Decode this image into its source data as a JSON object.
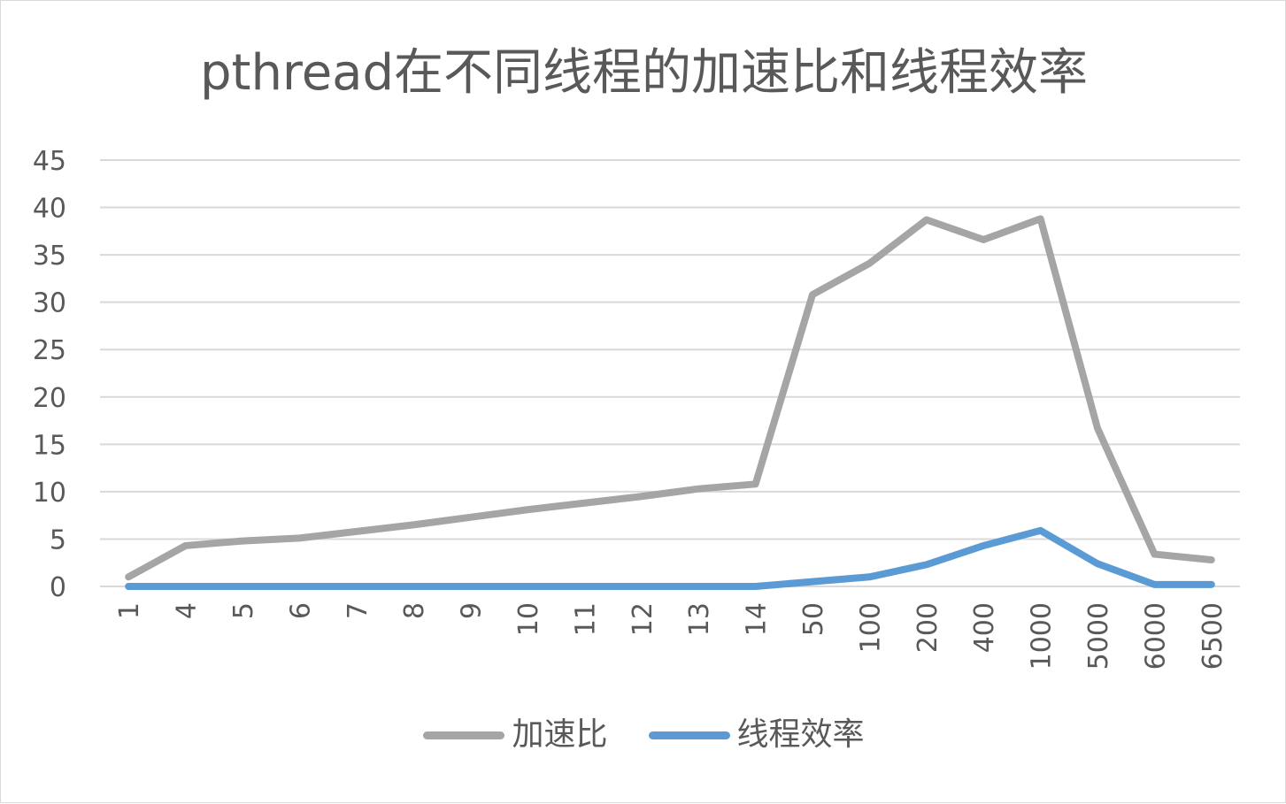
{
  "chart_data": {
    "type": "line",
    "title": "pthread在不同线程的加速比和线程效率",
    "categories": [
      "1",
      "4",
      "5",
      "6",
      "7",
      "8",
      "9",
      "10",
      "11",
      "12",
      "13",
      "14",
      "50",
      "100",
      "200",
      "400",
      "1000",
      "5000",
      "6000",
      "6500"
    ],
    "series": [
      {
        "name": "加速比",
        "color": "#a5a5a5",
        "values": [
          1.0,
          4.3,
          4.8,
          5.1,
          5.8,
          6.5,
          7.3,
          8.1,
          8.8,
          9.5,
          10.3,
          10.8,
          30.8,
          34.1,
          38.7,
          36.6,
          38.8,
          16.7,
          3.4,
          2.8
        ]
      },
      {
        "name": "线程效率",
        "color": "#5b9bd5",
        "values": [
          0.0,
          0.0,
          0.0,
          0.0,
          0.0,
          0.0,
          0.0,
          0.0,
          0.0,
          0.0,
          0.0,
          0.0,
          0.5,
          1.0,
          2.3,
          4.3,
          5.9,
          2.4,
          0.2,
          0.2
        ]
      }
    ],
    "yticks": [
      "0",
      "5",
      "10",
      "15",
      "20",
      "25",
      "30",
      "35",
      "40",
      "45"
    ],
    "ylim": [
      0,
      45
    ],
    "xlabel": "",
    "ylabel": "",
    "grid": true,
    "legend": "bottom"
  }
}
